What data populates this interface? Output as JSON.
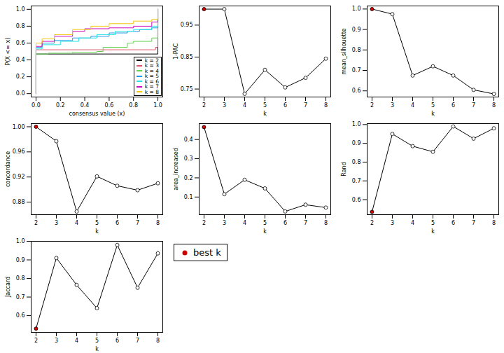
{
  "chart_data": [
    {
      "type": "line",
      "x_label": "consensus value (x)",
      "y_label": "P(X <= x)",
      "xlim": [
        -0.04,
        1.04
      ],
      "ylim": [
        -0.04,
        1.04
      ],
      "xticks": [
        {
          "value": 0,
          "label": "0.0"
        },
        0.2,
        0.4,
        0.6,
        0.8,
        {
          "value": 1,
          "label": "1.0"
        }
      ],
      "yticks": [
        {
          "value": 0,
          "label": "0.0"
        },
        0.2,
        0.4,
        0.6,
        0.8,
        {
          "value": 1,
          "label": "1.0"
        }
      ],
      "line_style": "step",
      "legend": "bottom-right",
      "series": [
        {
          "name": "k = 2",
          "color": "#000000",
          "x": [
            0,
            0,
            1,
            1
          ],
          "values": [
            0,
            0.47,
            0.47,
            1
          ]
        },
        {
          "name": "k = 3",
          "color": "#df536b",
          "x": [
            0,
            0,
            0.98,
            1,
            1
          ],
          "values": [
            0,
            0.52,
            0.55,
            0.55,
            1
          ]
        },
        {
          "name": "k = 4",
          "color": "#61d04f",
          "x": [
            0,
            0,
            0.1,
            0.3,
            0.5,
            0.55,
            0.75,
            0.8,
            0.95,
            1,
            1
          ],
          "values": [
            0,
            0.47,
            0.48,
            0.49,
            0.5,
            0.55,
            0.6,
            0.62,
            0.66,
            0.72,
            1
          ]
        },
        {
          "name": "k = 5",
          "color": "#2297e6",
          "x": [
            0,
            0,
            0.05,
            0.15,
            0.3,
            0.45,
            0.6,
            0.75,
            0.85,
            0.95,
            1,
            1
          ],
          "values": [
            0,
            0.55,
            0.6,
            0.63,
            0.66,
            0.68,
            0.72,
            0.74,
            0.76,
            0.78,
            0.8,
            1
          ]
        },
        {
          "name": "k = 6",
          "color": "#28e2e5",
          "x": [
            0,
            0,
            0.05,
            0.2,
            0.35,
            0.5,
            0.65,
            0.8,
            0.95,
            1,
            1
          ],
          "values": [
            0,
            0.53,
            0.58,
            0.62,
            0.66,
            0.7,
            0.74,
            0.76,
            0.8,
            0.82,
            1
          ]
        },
        {
          "name": "k = 7",
          "color": "#cd0bbc",
          "x": [
            0,
            0,
            0.05,
            0.15,
            0.3,
            0.4,
            0.6,
            0.8,
            0.95,
            1,
            1
          ],
          "values": [
            0,
            0.56,
            0.62,
            0.68,
            0.74,
            0.77,
            0.78,
            0.8,
            0.85,
            0.88,
            1
          ]
        },
        {
          "name": "k = 8",
          "color": "#f5c710",
          "x": [
            0,
            0,
            0.05,
            0.15,
            0.3,
            0.45,
            0.6,
            0.8,
            0.95,
            1,
            1
          ],
          "values": [
            0,
            0.6,
            0.65,
            0.7,
            0.76,
            0.8,
            0.83,
            0.86,
            0.88,
            0.92,
            1
          ]
        }
      ]
    },
    {
      "type": "line",
      "x_label": "k",
      "y_label": "1-PAC",
      "marker": "circle",
      "xlim": [
        1.76,
        8.24
      ],
      "ylim": [
        0.725,
        1.01
      ],
      "xticks": [
        2,
        3,
        4,
        5,
        6,
        7,
        8
      ],
      "yticks": [
        0.75,
        0.85,
        0.95
      ],
      "x": [
        2,
        3,
        4,
        5,
        6,
        7,
        8
      ],
      "values": [
        1.0,
        1.0,
        0.735,
        0.81,
        0.755,
        0.785,
        0.845
      ],
      "colors": [
        "#cc0000",
        "#ffffff",
        "#ffffff",
        "#ffffff",
        "#ffffff",
        "#ffffff",
        "#ffffff"
      ]
    },
    {
      "type": "line",
      "x_label": "k",
      "y_label": "mean_silhouette",
      "marker": "circle",
      "xlim": [
        1.76,
        8.24
      ],
      "ylim": [
        0.57,
        1.015
      ],
      "xticks": [
        2,
        3,
        4,
        5,
        6,
        7,
        8
      ],
      "yticks": [
        0.6,
        0.7,
        0.8,
        0.9,
        {
          "value": 1,
          "label": "1.0"
        }
      ],
      "x": [
        2,
        3,
        4,
        5,
        6,
        7,
        8
      ],
      "values": [
        1.0,
        0.975,
        0.675,
        0.72,
        0.675,
        0.605,
        0.585
      ],
      "colors": [
        "#cc0000",
        "#ffffff",
        "#ffffff",
        "#ffffff",
        "#ffffff",
        "#ffffff",
        "#ffffff"
      ]
    },
    {
      "type": "line",
      "x_label": "k",
      "y_label": "concordance",
      "marker": "circle",
      "xlim": [
        1.76,
        8.24
      ],
      "ylim": [
        0.86,
        1.005
      ],
      "xticks": [
        2,
        3,
        4,
        5,
        6,
        7,
        8
      ],
      "yticks": [
        0.88,
        0.92,
        0.96,
        {
          "value": 1,
          "label": "1.00"
        }
      ],
      "x": [
        2,
        3,
        4,
        5,
        6,
        7,
        8
      ],
      "values": [
        1.0,
        0.977,
        0.865,
        0.921,
        0.906,
        0.899,
        0.91
      ],
      "colors": [
        "#cc0000",
        "#ffffff",
        "#ffffff",
        "#ffffff",
        "#ffffff",
        "#ffffff",
        "#ffffff"
      ]
    },
    {
      "type": "line",
      "x_label": "k",
      "y_label": "area_increased",
      "marker": "circle",
      "xlim": [
        1.76,
        8.24
      ],
      "ylim": [
        0.008,
        0.483
      ],
      "xticks": [
        2,
        3,
        4,
        5,
        6,
        7,
        8
      ],
      "yticks": [
        0.1,
        0.2,
        0.3,
        0.4
      ],
      "x": [
        2,
        3,
        4,
        5,
        6,
        7,
        8
      ],
      "values": [
        0.465,
        0.115,
        0.19,
        0.145,
        0.025,
        0.06,
        0.045
      ],
      "colors": [
        "#cc0000",
        "#ffffff",
        "#ffffff",
        "#ffffff",
        "#ffffff",
        "#ffffff",
        "#ffffff"
      ]
    },
    {
      "type": "line",
      "x_label": "k",
      "y_label": "Rand",
      "marker": "circle",
      "xlim": [
        1.76,
        8.24
      ],
      "ylim": [
        0.52,
        1.005
      ],
      "xticks": [
        2,
        3,
        4,
        5,
        6,
        7,
        8
      ],
      "yticks": [
        0.6,
        0.7,
        0.8,
        0.9,
        {
          "value": 1,
          "label": "1.0"
        }
      ],
      "x": [
        2,
        3,
        4,
        5,
        6,
        7,
        8
      ],
      "values": [
        0.535,
        0.95,
        0.885,
        0.855,
        0.99,
        0.925,
        0.98
      ],
      "colors": [
        "#cc0000",
        "#ffffff",
        "#ffffff",
        "#ffffff",
        "#ffffff",
        "#ffffff",
        "#ffffff"
      ]
    },
    {
      "type": "line",
      "x_label": "k",
      "y_label": "Jaccard",
      "marker": "circle",
      "xlim": [
        1.76,
        8.24
      ],
      "ylim": [
        0.51,
        1.0
      ],
      "xticks": [
        2,
        3,
        4,
        5,
        6,
        7,
        8
      ],
      "yticks": [
        0.6,
        0.7,
        0.8,
        0.9,
        {
          "value": 1,
          "label": "1.0"
        }
      ],
      "x": [
        2,
        3,
        4,
        5,
        6,
        7,
        8
      ],
      "values": [
        0.53,
        0.91,
        0.765,
        0.64,
        0.98,
        0.75,
        0.935
      ],
      "colors": [
        "#cc0000",
        "#ffffff",
        "#ffffff",
        "#ffffff",
        "#ffffff",
        "#ffffff",
        "#ffffff"
      ]
    },
    {
      "type": "legend",
      "series": [
        {
          "name": "best k",
          "color": "#cc0000",
          "marker": "circle"
        }
      ]
    }
  ]
}
